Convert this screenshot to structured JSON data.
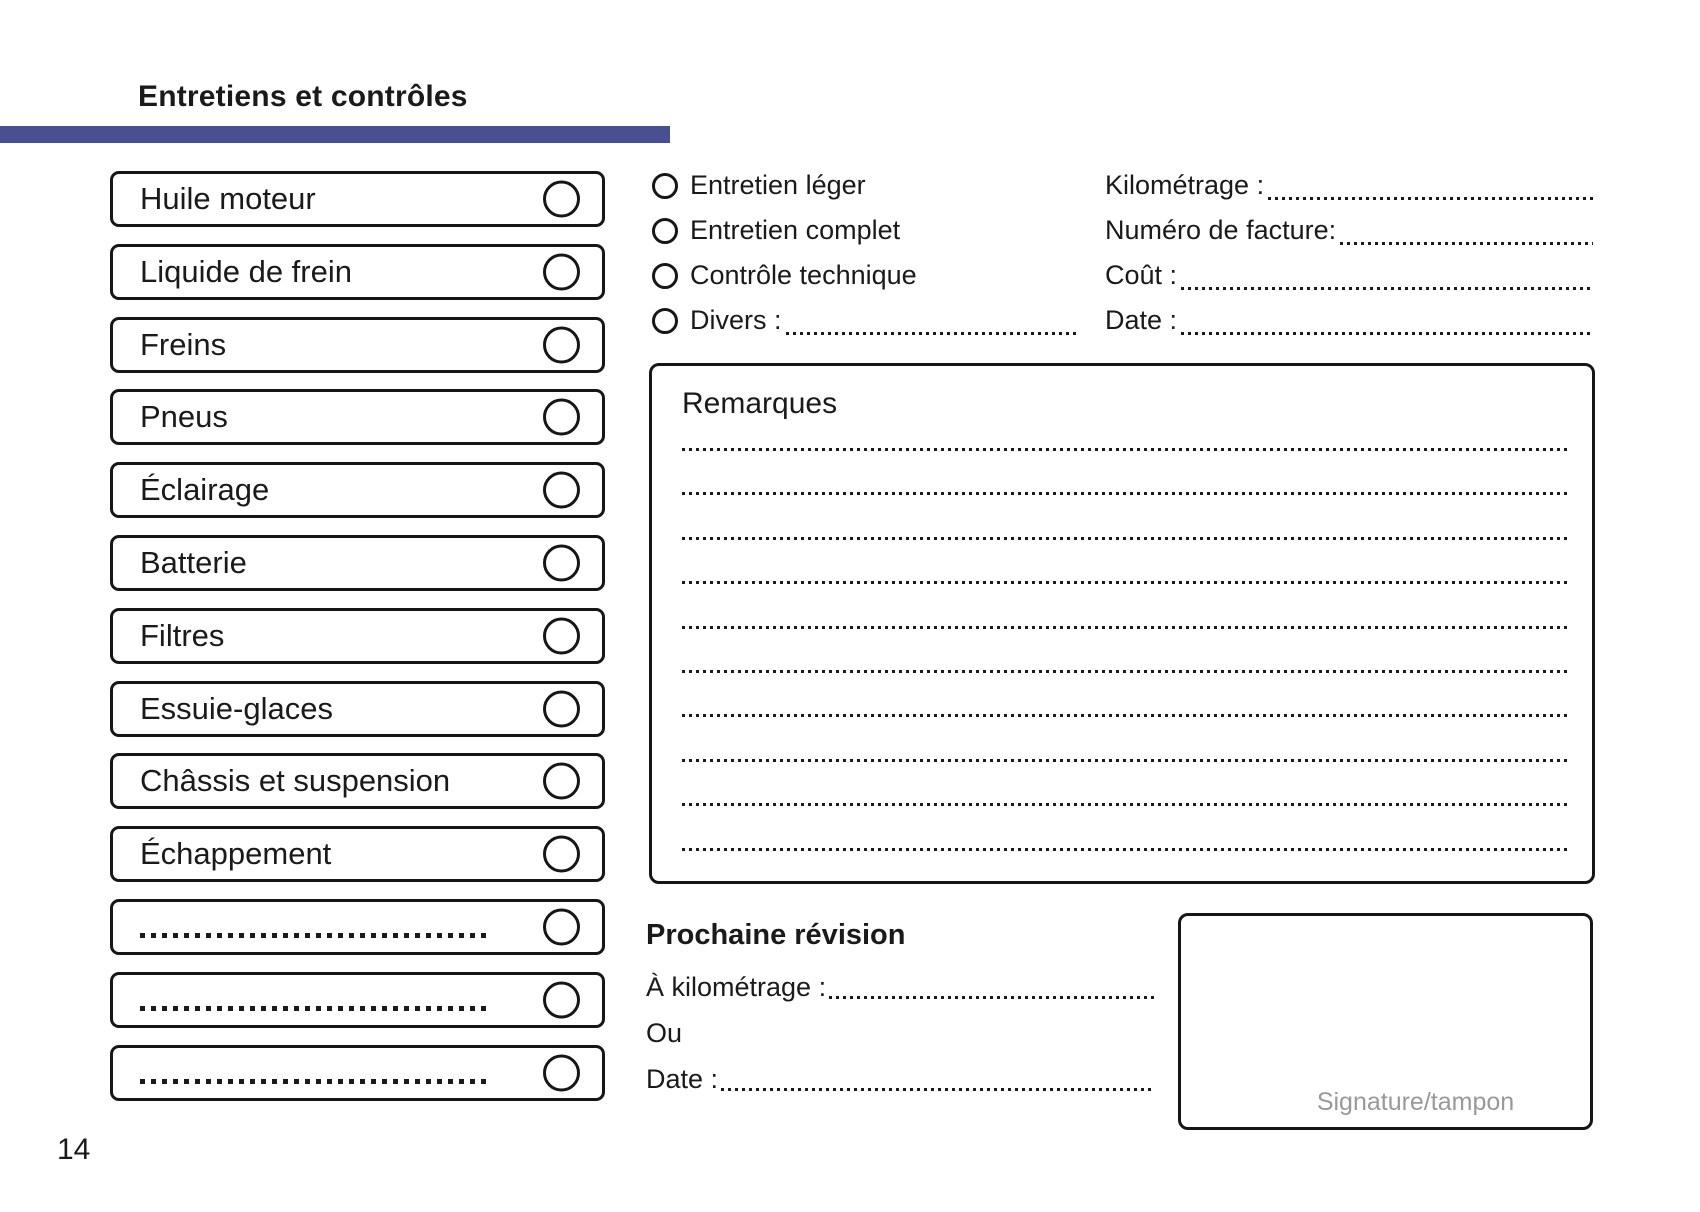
{
  "header": {
    "title": "Entretiens et contrôles",
    "accent_color": "#4a4f92"
  },
  "checklist": {
    "items": [
      "Huile moteur",
      "Liquide de frein",
      "Freins",
      "Pneus",
      "Éclairage",
      "Batterie",
      "Filtres",
      "Essuie-glaces",
      "Châssis et suspension",
      "Échappement"
    ],
    "blank_dotted_rows": 3
  },
  "service_type": {
    "options": [
      "Entretien léger",
      "Entretien complet",
      "Contrôle technique",
      "Divers :"
    ]
  },
  "invoice_fields": {
    "labels": [
      "Kilométrage :",
      "Numéro de facture:",
      "Coût :",
      "Date :"
    ]
  },
  "remarks": {
    "title": "Remarques",
    "lines": 10
  },
  "next_service": {
    "title": "Prochaine révision",
    "km_label": "À kilométrage :",
    "or_label": "Ou",
    "date_label": "Date :"
  },
  "signature": {
    "label": "Signature/tampon"
  },
  "footer": {
    "page_number": "14"
  }
}
